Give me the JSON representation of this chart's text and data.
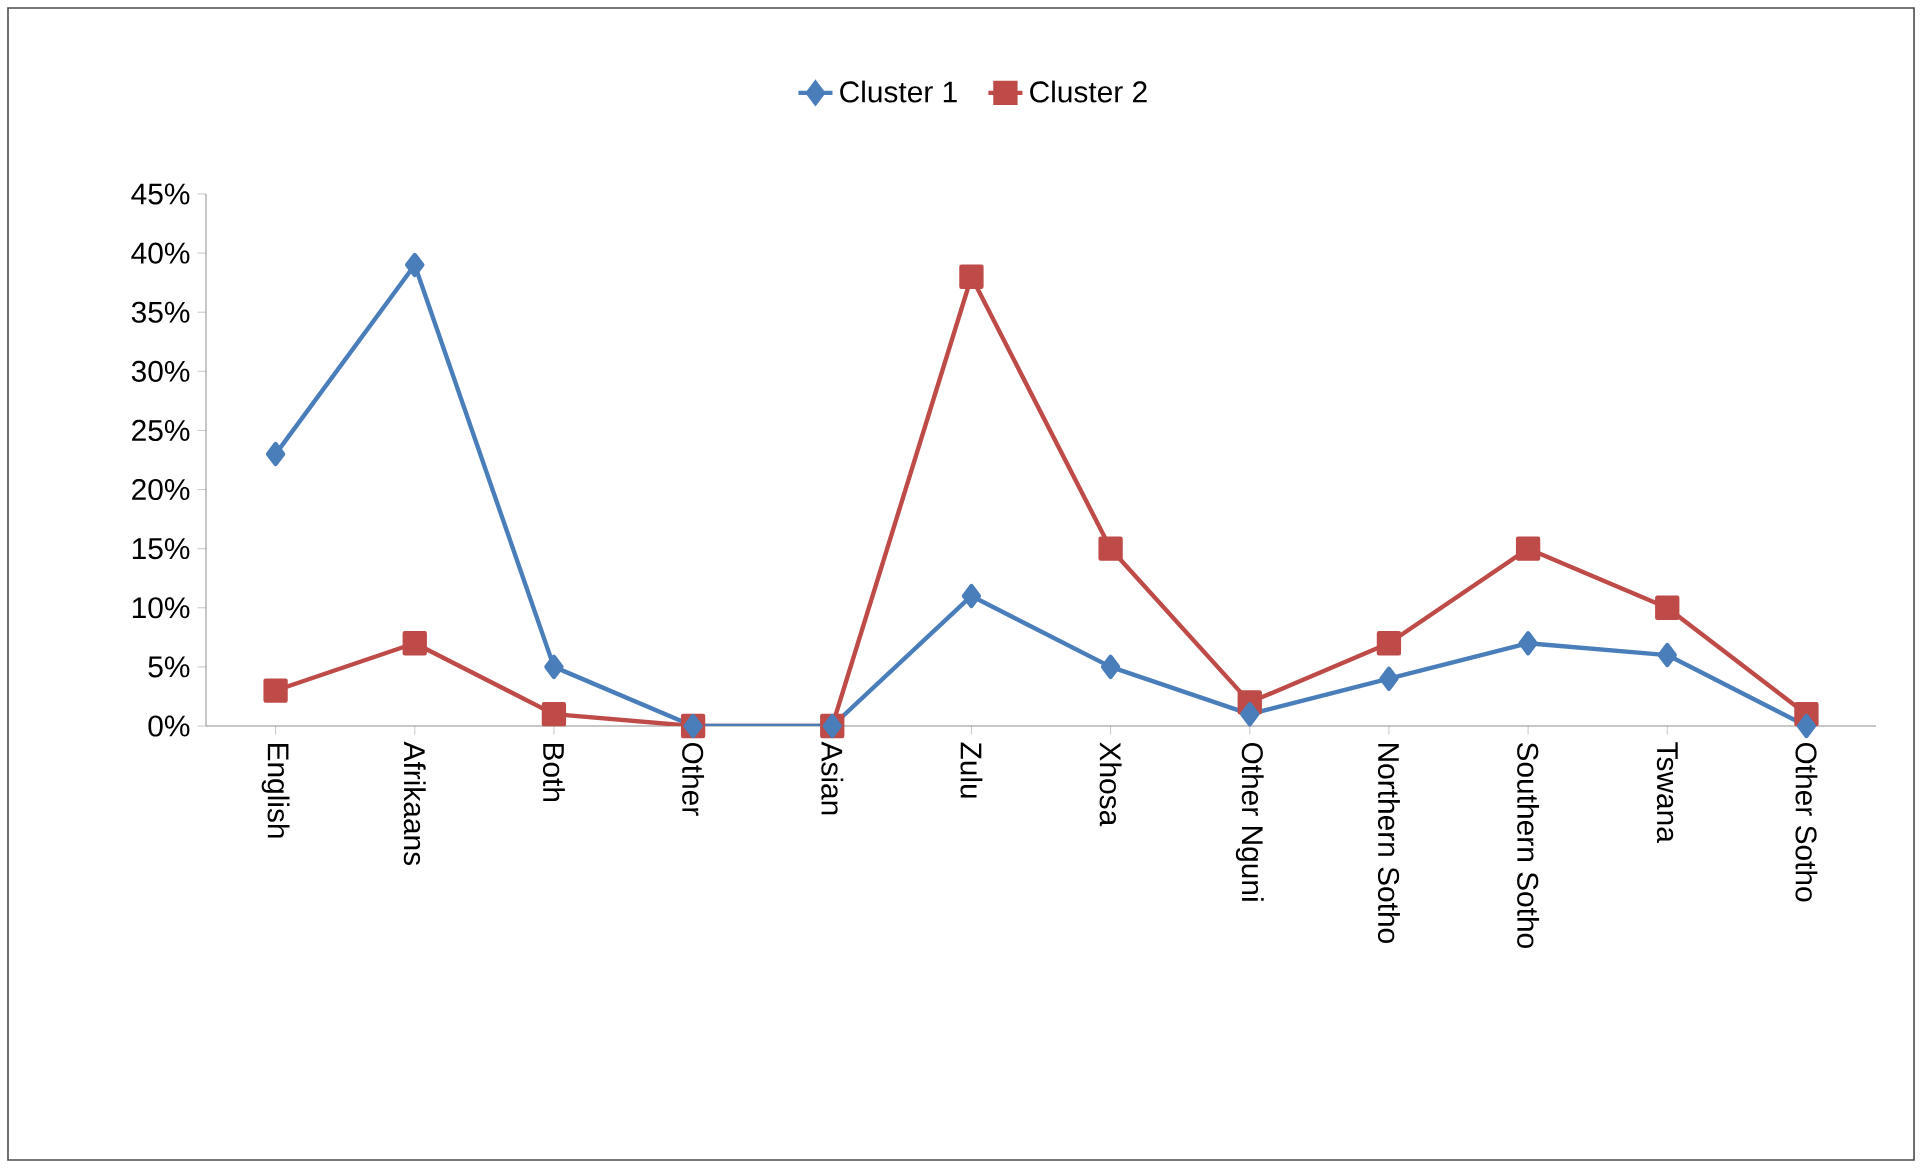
{
  "chart_data": {
    "type": "line",
    "categories": [
      "English",
      "Afrikaans",
      "Both",
      "Other",
      "Asian",
      "Zulu",
      "Xhosa",
      "Other Nguni",
      "Northern Sotho",
      "Southern Sotho",
      "Tswana",
      "Other Sotho"
    ],
    "series": [
      {
        "name": "Cluster 1",
        "color": "#4a7ebb",
        "marker": "diamond",
        "values": [
          23,
          39,
          5,
          0,
          0,
          11,
          5,
          1,
          4,
          7,
          6,
          0
        ]
      },
      {
        "name": "Cluster 2",
        "color": "#be4b48",
        "marker": "square",
        "values": [
          3,
          7,
          1,
          0,
          0,
          38,
          15,
          2,
          7,
          15,
          10,
          1
        ]
      }
    ],
    "ylim": [
      0,
      45
    ],
    "yticks": [
      {
        "value": 0,
        "label": "0%"
      },
      {
        "value": 5,
        "label": "5%"
      },
      {
        "value": 10,
        "label": "10%"
      },
      {
        "value": 15,
        "label": "15%"
      },
      {
        "value": 20,
        "label": "20%"
      },
      {
        "value": 25,
        "label": "25%"
      },
      {
        "value": 30,
        "label": "30%"
      },
      {
        "value": 35,
        "label": "35%"
      },
      {
        "value": 40,
        "label": "40%"
      },
      {
        "value": 45,
        "label": "45%"
      }
    ],
    "legend": "top",
    "line_style": "solid"
  }
}
